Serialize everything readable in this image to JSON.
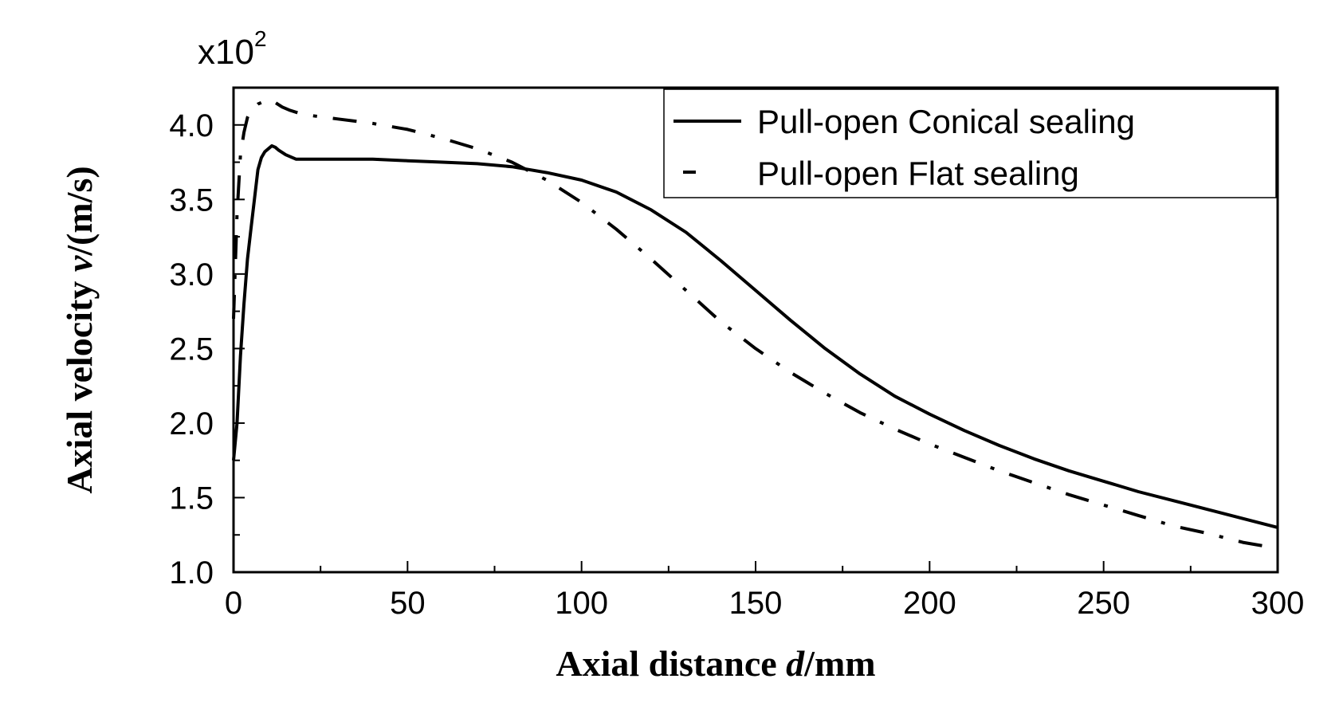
{
  "chart_data": {
    "type": "line",
    "xlabel_parts": [
      "Axial distance ",
      "d",
      "/mm"
    ],
    "ylabel_parts": [
      "Axial velocity ",
      "v",
      "/(m/s)"
    ],
    "y_multiplier": {
      "base": "x10",
      "exponent": "2"
    },
    "xlim": [
      0,
      300
    ],
    "ylim": [
      1.0,
      4.25
    ],
    "xticks": [
      "0",
      "50",
      "100",
      "150",
      "200",
      "250",
      "300"
    ],
    "xtick_values": [
      0,
      50,
      100,
      150,
      200,
      250,
      300
    ],
    "yticks": [
      "1.0",
      "1.5",
      "2.0",
      "2.5",
      "3.0",
      "3.5",
      "4.0"
    ],
    "ytick_values": [
      1.0,
      1.5,
      2.0,
      2.5,
      3.0,
      3.5,
      4.0
    ],
    "grid": false,
    "legend_position": "top-right",
    "series": [
      {
        "name": "Pull-open Conical sealing",
        "style": "solid",
        "color": "#000000",
        "x": [
          0,
          1,
          2,
          3,
          4,
          5,
          6,
          7,
          8,
          9,
          10,
          11,
          12,
          13,
          15,
          18,
          20,
          25,
          30,
          40,
          50,
          60,
          70,
          80,
          90,
          100,
          110,
          120,
          130,
          140,
          150,
          160,
          170,
          180,
          190,
          200,
          210,
          220,
          230,
          240,
          250,
          260,
          270,
          280,
          290,
          300
        ],
        "y": [
          1.75,
          2.0,
          2.45,
          2.8,
          3.1,
          3.3,
          3.5,
          3.7,
          3.78,
          3.82,
          3.84,
          3.86,
          3.85,
          3.83,
          3.8,
          3.77,
          3.77,
          3.77,
          3.77,
          3.77,
          3.76,
          3.75,
          3.74,
          3.72,
          3.68,
          3.63,
          3.55,
          3.43,
          3.28,
          3.09,
          2.89,
          2.69,
          2.5,
          2.33,
          2.18,
          2.06,
          1.95,
          1.85,
          1.76,
          1.68,
          1.61,
          1.54,
          1.48,
          1.42,
          1.36,
          1.3
        ]
      },
      {
        "name": "Pull-open Flat sealing",
        "style": "dash-dot",
        "color": "#000000",
        "x": [
          0,
          1,
          2,
          3,
          4,
          5,
          7,
          9,
          10,
          11,
          12,
          14,
          16,
          20,
          30,
          40,
          50,
          60,
          70,
          80,
          90,
          100,
          110,
          120,
          130,
          140,
          150,
          160,
          170,
          180,
          190,
          200,
          210,
          220,
          230,
          240,
          250,
          260,
          270,
          280,
          290,
          300
        ],
        "y": [
          2.7,
          3.4,
          3.8,
          3.95,
          4.05,
          4.1,
          4.14,
          4.16,
          4.17,
          4.16,
          4.15,
          4.12,
          4.1,
          4.07,
          4.04,
          4.01,
          3.97,
          3.91,
          3.84,
          3.75,
          3.63,
          3.48,
          3.3,
          3.1,
          2.89,
          2.68,
          2.5,
          2.34,
          2.2,
          2.07,
          1.96,
          1.86,
          1.77,
          1.68,
          1.6,
          1.52,
          1.45,
          1.38,
          1.31,
          1.26,
          1.2,
          1.16
        ]
      }
    ]
  }
}
